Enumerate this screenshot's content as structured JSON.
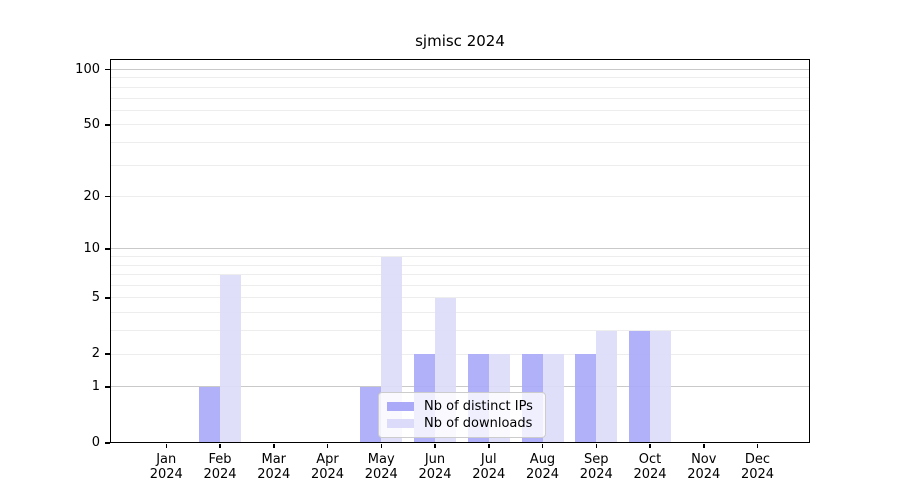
{
  "chart_data": {
    "type": "bar",
    "title": "sjmisc 2024",
    "categories": [
      "Jan",
      "Feb",
      "Mar",
      "Apr",
      "May",
      "Jun",
      "Jul",
      "Aug",
      "Sep",
      "Oct",
      "Nov",
      "Dec"
    ],
    "category_sublabel": "2024",
    "series": [
      {
        "name": "Nb of distinct IPs",
        "color": "#aaaaf9",
        "values": [
          0,
          1,
          0,
          0,
          1,
          2,
          2,
          2,
          2,
          3,
          0,
          0
        ]
      },
      {
        "name": "Nb of downloads",
        "color": "#dcdcfa",
        "values": [
          0,
          7,
          0,
          0,
          9,
          5,
          2,
          2,
          3,
          3,
          0,
          0
        ]
      }
    ],
    "y_axis": {
      "scale": "log1p",
      "ticks": [
        0,
        1,
        2,
        5,
        10,
        20,
        50,
        100
      ],
      "limit_max": 114,
      "major_gridlines": [
        1,
        10,
        100
      ],
      "minor_gridlines": [
        2,
        3,
        4,
        5,
        6,
        7,
        8,
        9,
        20,
        30,
        40,
        50,
        60,
        70,
        80,
        90
      ]
    },
    "x_axis": {
      "ticks_per_month": true
    },
    "legend": {
      "position": "lower center"
    },
    "colors": {
      "bar_dark": "#aaaaf9",
      "bar_light": "#dcdcfa",
      "major_grid": "#c9c9c9",
      "minor_grid": "#ededed",
      "spine": "#000000",
      "text": "#000000",
      "legend_border": "#cccccc"
    },
    "grid": "on",
    "ylim": [
      0,
      114
    ]
  }
}
